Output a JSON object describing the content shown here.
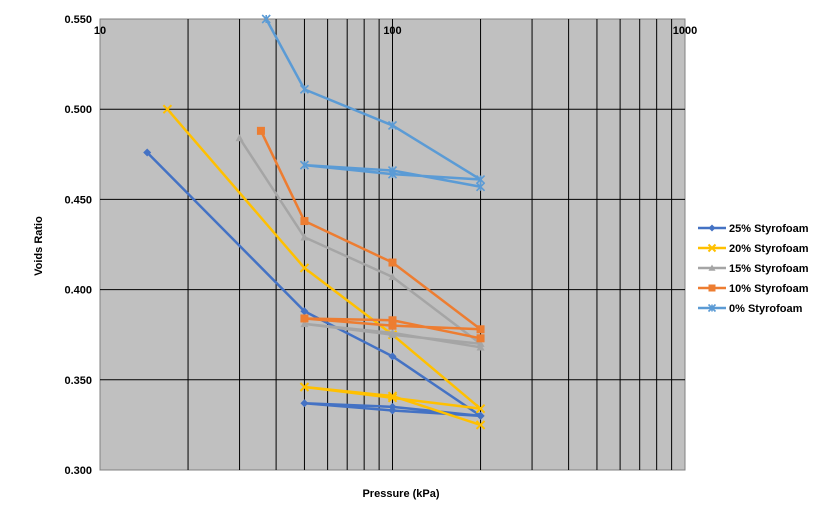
{
  "chart_data": {
    "type": "line",
    "title": "",
    "xlabel": "Pressure (kPa)",
    "ylabel": "Voids Ratio",
    "xscale": "log",
    "xlim": [
      10,
      1000
    ],
    "ylim": [
      0.3,
      0.55
    ],
    "xticks": [
      "10",
      "100",
      "1000"
    ],
    "yticks": [
      "0.300",
      "0.350",
      "0.400",
      "0.450",
      "0.500",
      "0.550"
    ],
    "grid": true,
    "plot_background": "#c0c0c0",
    "legend_position": "right",
    "series": [
      {
        "name": "25% Styrofoam",
        "color": "#4472c4",
        "marker": "diamond",
        "points": [
          [
            14.5,
            0.476
          ],
          [
            50,
            0.388
          ],
          [
            100,
            0.363
          ],
          [
            200,
            0.33
          ],
          [
            100,
            0.335
          ],
          [
            50,
            0.337
          ],
          [
            100,
            0.333
          ],
          [
            200,
            0.33
          ]
        ]
      },
      {
        "name": "20% Styrofoam",
        "color": "#ffc000",
        "marker": "x",
        "points": [
          [
            17,
            0.5
          ],
          [
            50,
            0.412
          ],
          [
            100,
            0.375
          ],
          [
            200,
            0.334
          ],
          [
            100,
            0.34
          ],
          [
            50,
            0.346
          ],
          [
            100,
            0.341
          ],
          [
            200,
            0.325
          ]
        ]
      },
      {
        "name": "15% Styrofoam",
        "color": "#a5a5a5",
        "marker": "triangle",
        "points": [
          [
            30,
            0.484
          ],
          [
            50,
            0.429
          ],
          [
            100,
            0.407
          ],
          [
            200,
            0.37
          ],
          [
            100,
            0.375
          ],
          [
            50,
            0.381
          ],
          [
            100,
            0.376
          ],
          [
            200,
            0.368
          ]
        ]
      },
      {
        "name": "10% Styrofoam",
        "color": "#ed7d31",
        "marker": "square",
        "points": [
          [
            35.5,
            0.488
          ],
          [
            50,
            0.438
          ],
          [
            100,
            0.415
          ],
          [
            200,
            0.378
          ],
          [
            100,
            0.38
          ],
          [
            50,
            0.384
          ],
          [
            100,
            0.383
          ],
          [
            200,
            0.373
          ]
        ]
      },
      {
        "name": "0% Styrofoam",
        "color": "#5b9bd5",
        "marker": "star",
        "points": [
          [
            37,
            0.55
          ],
          [
            50,
            0.511
          ],
          [
            100,
            0.491
          ],
          [
            200,
            0.461
          ],
          [
            100,
            0.464
          ],
          [
            50,
            0.469
          ],
          [
            100,
            0.466
          ],
          [
            200,
            0.457
          ]
        ]
      }
    ]
  }
}
